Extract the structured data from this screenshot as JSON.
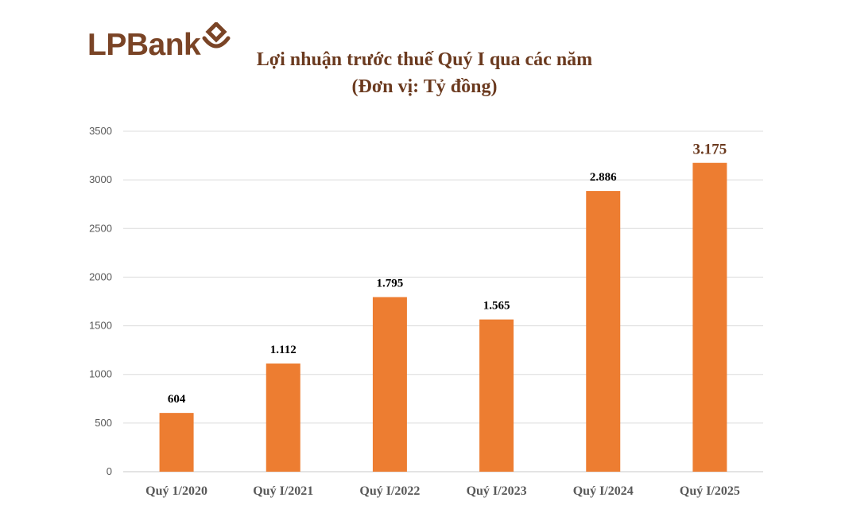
{
  "logo": {
    "text": "LPBank"
  },
  "chart_data": {
    "type": "bar",
    "title": "Lợi nhuận trước thuế Quý I qua các năm",
    "subtitle": "(Đơn vị: Tỷ đồng)",
    "categories": [
      "Quý 1/2020",
      "Quý I/2021",
      "Quý I/2022",
      "Quý I/2023",
      "Quý I/2024",
      "Quý I/2025"
    ],
    "values": [
      604,
      1112,
      1795,
      1565,
      2886,
      3175
    ],
    "data_labels": [
      "604",
      "1.112",
      "1.795",
      "1.565",
      "2.886",
      "3.175"
    ],
    "yticks": [
      "0",
      "500",
      "1000",
      "1500",
      "2000",
      "2500",
      "3000",
      "3500"
    ],
    "ylim": [
      0,
      3500
    ],
    "grid": true,
    "legend": "none",
    "bar_color": "#ed7d31",
    "title_color": "#6b3a1f",
    "logo_color": "#7a4426"
  }
}
